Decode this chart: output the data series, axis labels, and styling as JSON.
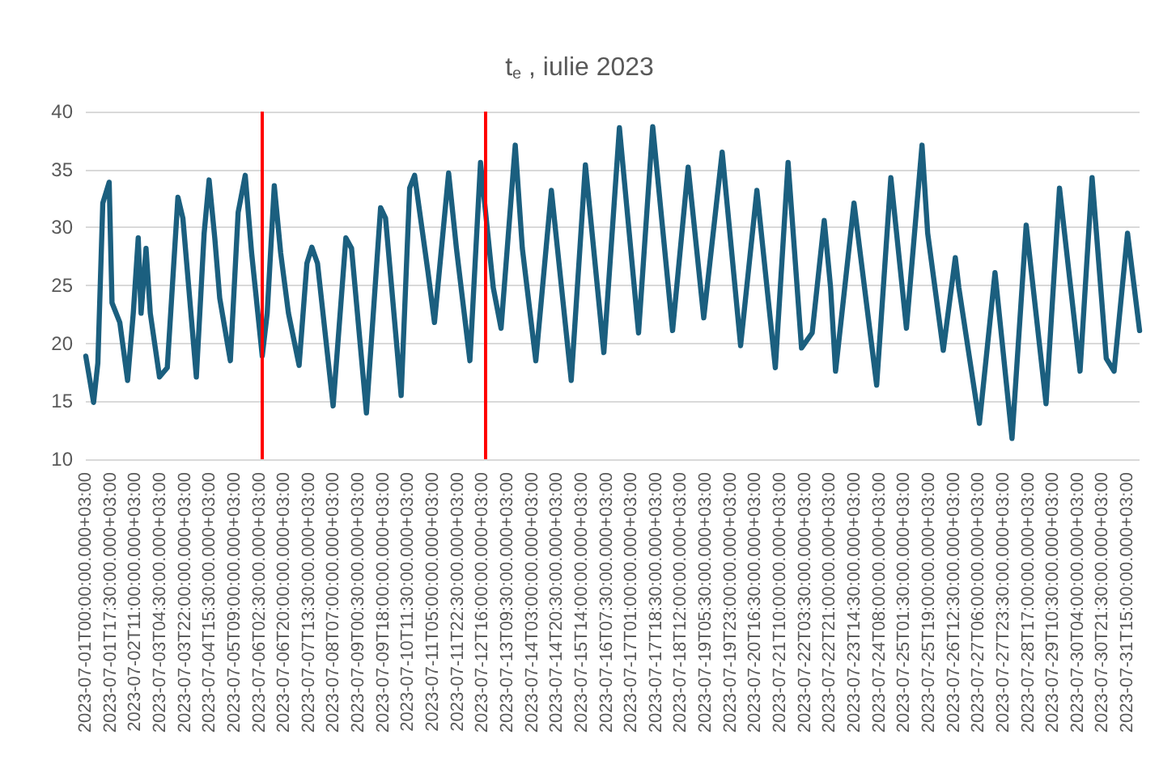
{
  "chart_data": {
    "type": "line",
    "title": "t$_{e}$ , iulie 2023",
    "x": [
      "2023-07-01T00:00",
      "2023-07-01T05:30",
      "2023-07-01T08:30",
      "2023-07-01T12:00",
      "2023-07-01T16:30",
      "2023-07-01T18:30",
      "2023-07-02T00:00",
      "2023-07-02T05:30",
      "2023-07-02T09:30",
      "2023-07-02T13:00",
      "2023-07-02T15:00",
      "2023-07-02T18:30",
      "2023-07-02T21:30",
      "2023-07-03T04:00",
      "2023-07-03T09:30",
      "2023-07-03T17:00",
      "2023-07-03T20:30",
      "2023-07-04T06:00",
      "2023-07-04T11:30",
      "2023-07-04T15:00",
      "2023-07-04T19:00",
      "2023-07-04T22:30",
      "2023-07-05T06:00",
      "2023-07-05T11:30",
      "2023-07-05T16:30",
      "2023-07-05T21:00",
      "2023-07-06T04:30",
      "2023-07-06T08:00",
      "2023-07-06T13:00",
      "2023-07-06T17:30",
      "2023-07-06T23:00",
      "2023-07-07T06:30",
      "2023-07-07T12:00",
      "2023-07-07T15:30",
      "2023-07-07T19:30",
      "2023-07-08T06:30",
      "2023-07-08T15:30",
      "2023-07-08T19:30",
      "2023-07-09T06:00",
      "2023-07-09T16:00",
      "2023-07-09T19:30",
      "2023-07-10T06:30",
      "2023-07-10T12:30",
      "2023-07-10T16:00",
      "2023-07-11T01:30",
      "2023-07-11T06:00",
      "2023-07-11T16:00",
      "2023-07-11T21:30",
      "2023-07-12T07:00",
      "2023-07-12T14:30",
      "2023-07-12T23:30",
      "2023-07-13T05:00",
      "2023-07-13T15:00",
      "2023-07-13T20:00",
      "2023-07-14T05:30",
      "2023-07-14T16:30",
      "2023-07-15T06:30",
      "2023-07-15T16:30",
      "2023-07-16T05:30",
      "2023-07-16T16:30",
      "2023-07-17T06:00",
      "2023-07-17T16:00",
      "2023-07-18T06:00",
      "2023-07-18T17:00",
      "2023-07-19T04:00",
      "2023-07-19T17:00",
      "2023-07-20T06:00",
      "2023-07-20T17:30",
      "2023-07-21T06:30",
      "2023-07-21T15:30",
      "2023-07-22T01:00",
      "2023-07-22T08:30",
      "2023-07-22T17:00",
      "2023-07-22T21:30",
      "2023-07-23T01:00",
      "2023-07-23T14:00",
      "2023-07-24T06:00",
      "2023-07-24T16:00",
      "2023-07-25T03:00",
      "2023-07-25T14:00",
      "2023-07-25T18:00",
      "2023-07-26T05:00",
      "2023-07-26T13:30",
      "2023-07-26T16:00",
      "2023-07-27T06:30",
      "2023-07-27T17:30",
      "2023-07-28T05:30",
      "2023-07-28T15:30",
      "2023-07-29T05:30",
      "2023-07-29T15:00",
      "2023-07-30T05:30",
      "2023-07-30T14:00",
      "2023-07-31T00:00",
      "2023-07-31T05:30",
      "2023-07-31T15:00",
      "2023-07-31T23:30"
    ],
    "series": [
      {
        "color": "#1b5f7f",
        "values": [
          18.9,
          14.9,
          18.3,
          32.1,
          33.9,
          23.5,
          21.8,
          16.8,
          22.6,
          29.1,
          22.6,
          28.2,
          22.6,
          17.1,
          17.9,
          32.6,
          30.8,
          17.1,
          29.5,
          34.1,
          29.1,
          23.9,
          18.5,
          31.3,
          34.5,
          27.8,
          18.9,
          22.6,
          33.6,
          27.8,
          22.6,
          18.1,
          26.9,
          28.3,
          26.9,
          14.6,
          29.1,
          28.2,
          14.0,
          31.7,
          30.8,
          15.5,
          33.4,
          34.5,
          26.1,
          21.8,
          34.7,
          28.2,
          18.5,
          35.6,
          24.8,
          21.3,
          37.1,
          28.2,
          18.5,
          33.2,
          16.8,
          35.4,
          19.2,
          38.6,
          20.9,
          38.7,
          21.1,
          35.2,
          22.2,
          36.5,
          19.8,
          33.2,
          17.9,
          35.6,
          19.6,
          20.9,
          30.6,
          24.8,
          17.6,
          32.1,
          16.4,
          34.3,
          21.3,
          37.1,
          29.5,
          19.4,
          27.4,
          24.8,
          13.1,
          26.1,
          11.8,
          30.2,
          14.8,
          33.4,
          17.6,
          34.3,
          18.7,
          17.6,
          29.5,
          21.1
        ]
      }
    ],
    "xlim": [
      "2023-07-01T00:00",
      "2023-07-31T23:30"
    ],
    "xticks": [
      {
        "value": "2023-07-01T00:00",
        "label": "2023-07-01T00:00:00.000+03:00"
      },
      {
        "value": "2023-07-01T17:30",
        "label": "2023-07-01T17:30:00.000+03:00"
      },
      {
        "value": "2023-07-02T11:00",
        "label": "2023-07-02T11:00:00.000+03:00"
      },
      {
        "value": "2023-07-03T04:30",
        "label": "2023-07-03T04:30:00.000+03:00"
      },
      {
        "value": "2023-07-03T22:00",
        "label": "2023-07-03T22:00:00.000+03:00"
      },
      {
        "value": "2023-07-04T15:30",
        "label": "2023-07-04T15:30:00.000+03:00"
      },
      {
        "value": "2023-07-05T09:00",
        "label": "2023-07-05T09:00:00.000+03:00"
      },
      {
        "value": "2023-07-06T02:30",
        "label": "2023-07-06T02:30:00.000+03:00"
      },
      {
        "value": "2023-07-06T20:00",
        "label": "2023-07-06T20:00:00.000+03:00"
      },
      {
        "value": "2023-07-07T13:30",
        "label": "2023-07-07T13:30:00.000+03:00"
      },
      {
        "value": "2023-07-08T07:00",
        "label": "2023-07-08T07:00:00.000+03:00"
      },
      {
        "value": "2023-07-09T00:30",
        "label": "2023-07-09T00:30:00.000+03:00"
      },
      {
        "value": "2023-07-09T18:00",
        "label": "2023-07-09T18:00:00.000+03:00"
      },
      {
        "value": "2023-07-10T11:30",
        "label": "2023-07-10T11:30:00.000+03:00"
      },
      {
        "value": "2023-07-11T05:00",
        "label": "2023-07-11T05:00:00.000+03:00"
      },
      {
        "value": "2023-07-11T22:30",
        "label": "2023-07-11T22:30:00.000+03:00"
      },
      {
        "value": "2023-07-12T16:00",
        "label": "2023-07-12T16:00:00.000+03:00"
      },
      {
        "value": "2023-07-13T09:30",
        "label": "2023-07-13T09:30:00.000+03:00"
      },
      {
        "value": "2023-07-14T03:00",
        "label": "2023-07-14T03:00:00.000+03:00"
      },
      {
        "value": "2023-07-14T20:30",
        "label": "2023-07-14T20:30:00.000+03:00"
      },
      {
        "value": "2023-07-15T14:00",
        "label": "2023-07-15T14:00:00.000+03:00"
      },
      {
        "value": "2023-07-16T07:30",
        "label": "2023-07-16T07:30:00.000+03:00"
      },
      {
        "value": "2023-07-17T01:00",
        "label": "2023-07-17T01:00:00.000+03:00"
      },
      {
        "value": "2023-07-17T18:30",
        "label": "2023-07-17T18:30:00.000+03:00"
      },
      {
        "value": "2023-07-18T12:00",
        "label": "2023-07-18T12:00:00.000+03:00"
      },
      {
        "value": "2023-07-19T05:30",
        "label": "2023-07-19T05:30:00.000+03:00"
      },
      {
        "value": "2023-07-19T23:00",
        "label": "2023-07-19T23:00:00.000+03:00"
      },
      {
        "value": "2023-07-20T16:30",
        "label": "2023-07-20T16:30:00.000+03:00"
      },
      {
        "value": "2023-07-21T10:00",
        "label": "2023-07-21T10:00:00.000+03:00"
      },
      {
        "value": "2023-07-22T03:30",
        "label": "2023-07-22T03:30:00.000+03:00"
      },
      {
        "value": "2023-07-22T21:00",
        "label": "2023-07-22T21:00:00.000+03:00"
      },
      {
        "value": "2023-07-23T14:30",
        "label": "2023-07-23T14:30:00.000+03:00"
      },
      {
        "value": "2023-07-24T08:00",
        "label": "2023-07-24T08:00:00.000+03:00"
      },
      {
        "value": "2023-07-25T01:30",
        "label": "2023-07-25T01:30:00.000+03:00"
      },
      {
        "value": "2023-07-25T19:00",
        "label": "2023-07-25T19:00:00.000+03:00"
      },
      {
        "value": "2023-07-26T12:30",
        "label": "2023-07-26T12:30:00.000+03:00"
      },
      {
        "value": "2023-07-27T06:00",
        "label": "2023-07-27T06:00:00.000+03:00"
      },
      {
        "value": "2023-07-27T23:30",
        "label": "2023-07-27T23:30:00.000+03:00"
      },
      {
        "value": "2023-07-28T17:00",
        "label": "2023-07-28T17:00:00.000+03:00"
      },
      {
        "value": "2023-07-29T10:30",
        "label": "2023-07-29T10:30:00.000+03:00"
      },
      {
        "value": "2023-07-30T04:00",
        "label": "2023-07-30T04:00:00.000+03:00"
      },
      {
        "value": "2023-07-30T21:30",
        "label": "2023-07-30T21:30:00.000+03:00"
      },
      {
        "value": "2023-07-31T15:00",
        "label": "2023-07-31T15:00:00.000+03:00"
      }
    ],
    "ylim": [
      10,
      40
    ],
    "yticks": [
      10,
      15,
      20,
      25,
      30,
      35,
      40
    ],
    "grid": "y",
    "ref_lines": [
      {
        "axis": "x",
        "value": "2023-07-06T04:00",
        "color": "#ff0000"
      },
      {
        "axis": "x",
        "value": "2023-07-12T17:30",
        "color": "#ff0000"
      }
    ]
  }
}
